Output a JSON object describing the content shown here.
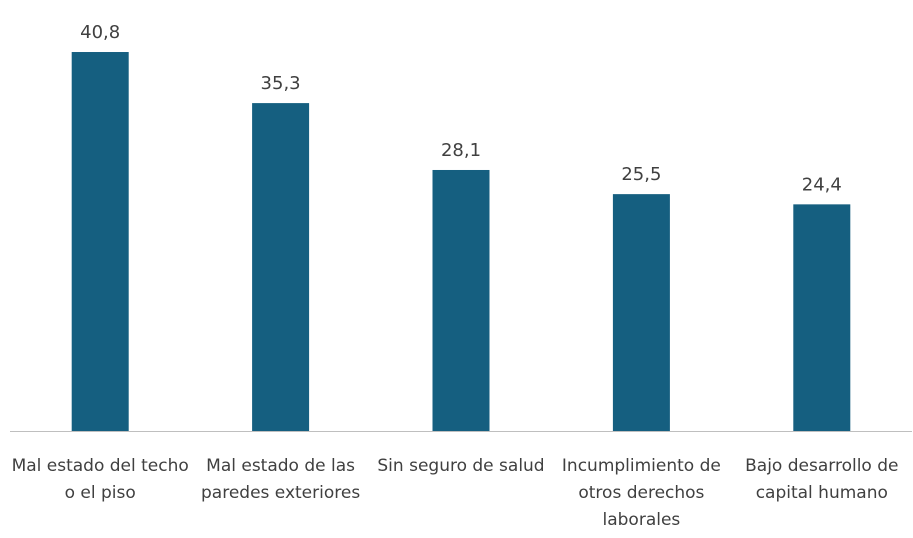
{
  "chart_data": {
    "type": "bar",
    "categories": [
      "Mal estado del techo o el piso",
      "Mal estado de las paredes exteriores",
      "Sin seguro de salud",
      "Incumplimiento de otros derechos laborales",
      "Bajo desarrollo de capital humano"
    ],
    "values": [
      40.8,
      35.3,
      28.1,
      25.5,
      24.4
    ],
    "value_labels": [
      "40,8",
      "35,3",
      "28,1",
      "25,5",
      "24,4"
    ],
    "color": "#155f80",
    "ylim": [
      0,
      45
    ]
  }
}
